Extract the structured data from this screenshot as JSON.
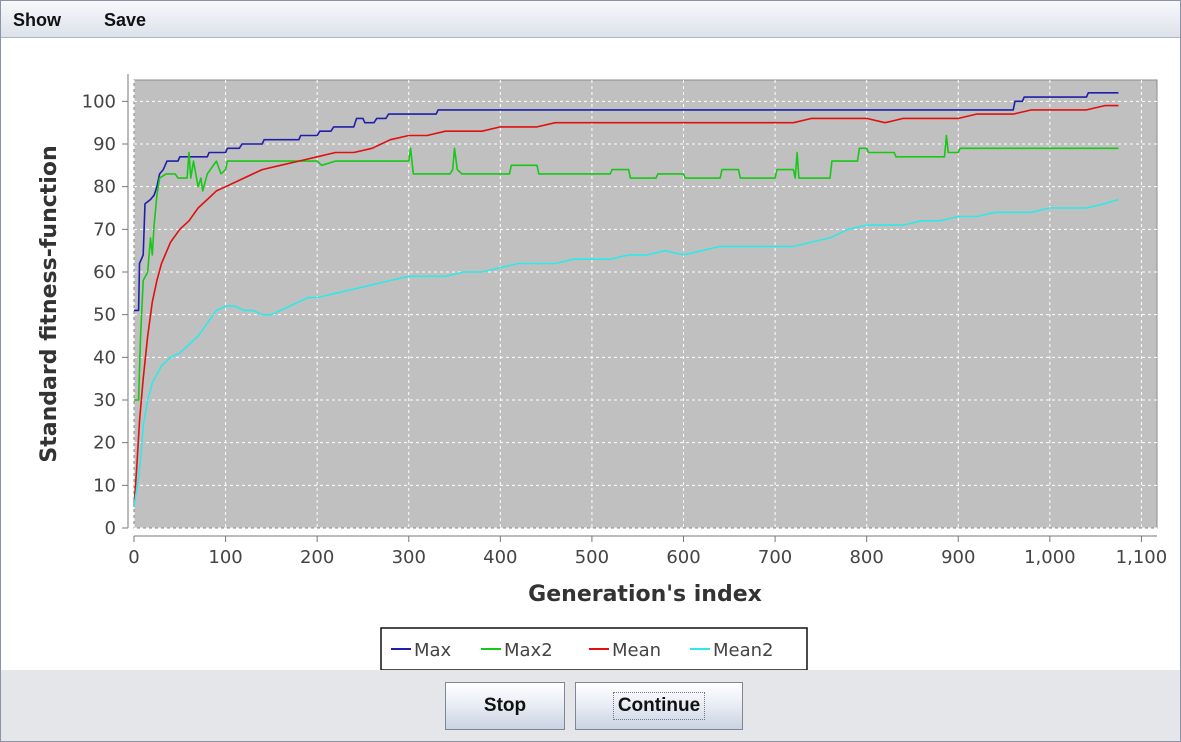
{
  "menu": {
    "items": [
      "Show",
      "Save"
    ]
  },
  "buttons": {
    "stop_label": "Stop",
    "continue_label": "Continue"
  },
  "chart_data": {
    "type": "line",
    "title": "",
    "xlabel": "Generation's index",
    "ylabel": "Standard fitness-function",
    "xlim": [
      0,
      1100
    ],
    "ylim": [
      0,
      105
    ],
    "x_ticks": [
      0,
      100,
      200,
      300,
      400,
      500,
      600,
      700,
      800,
      900,
      1000,
      1100
    ],
    "x_tick_labels": [
      "0",
      "100",
      "200",
      "300",
      "400",
      "500",
      "600",
      "700",
      "800",
      "900",
      "1,000",
      "1,100"
    ],
    "y_ticks": [
      0,
      10,
      20,
      30,
      40,
      50,
      60,
      70,
      80,
      90,
      100
    ],
    "y_tick_labels": [
      "0",
      "10",
      "20",
      "30",
      "40",
      "50",
      "60",
      "70",
      "80",
      "90",
      "100"
    ],
    "grid": true,
    "legend_position": "bottom-center",
    "plot_background": "#c0c0c0",
    "series": [
      {
        "name": "Max",
        "color": "#1f1faa",
        "step": true,
        "points": [
          [
            0,
            51
          ],
          [
            5,
            51
          ],
          [
            6,
            62
          ],
          [
            10,
            64
          ],
          [
            12,
            76
          ],
          [
            18,
            77
          ],
          [
            22,
            78
          ],
          [
            25,
            80
          ],
          [
            28,
            83
          ],
          [
            32,
            84
          ],
          [
            36,
            86
          ],
          [
            48,
            86
          ],
          [
            50,
            87
          ],
          [
            80,
            87
          ],
          [
            82,
            88
          ],
          [
            100,
            88
          ],
          [
            102,
            89
          ],
          [
            115,
            89
          ],
          [
            118,
            90
          ],
          [
            140,
            90
          ],
          [
            142,
            91
          ],
          [
            180,
            91
          ],
          [
            182,
            92
          ],
          [
            200,
            92
          ],
          [
            203,
            93
          ],
          [
            215,
            93
          ],
          [
            218,
            94
          ],
          [
            240,
            94
          ],
          [
            243,
            96
          ],
          [
            250,
            96
          ],
          [
            252,
            95
          ],
          [
            262,
            95
          ],
          [
            265,
            96
          ],
          [
            275,
            96
          ],
          [
            278,
            97
          ],
          [
            330,
            97
          ],
          [
            332,
            98
          ],
          [
            960,
            98
          ],
          [
            962,
            100
          ],
          [
            970,
            100
          ],
          [
            972,
            101
          ],
          [
            1040,
            101
          ],
          [
            1042,
            102
          ],
          [
            1075,
            102
          ]
        ]
      },
      {
        "name": "Max2",
        "color": "#18c818",
        "step": true,
        "points": [
          [
            0,
            30
          ],
          [
            5,
            30
          ],
          [
            7,
            44
          ],
          [
            10,
            58
          ],
          [
            15,
            60
          ],
          [
            18,
            68
          ],
          [
            20,
            64
          ],
          [
            22,
            71
          ],
          [
            25,
            78
          ],
          [
            28,
            82
          ],
          [
            35,
            83
          ],
          [
            45,
            83
          ],
          [
            48,
            82
          ],
          [
            58,
            82
          ],
          [
            60,
            88
          ],
          [
            62,
            82
          ],
          [
            65,
            86
          ],
          [
            70,
            80
          ],
          [
            73,
            82
          ],
          [
            75,
            79
          ],
          [
            80,
            83
          ],
          [
            90,
            86
          ],
          [
            95,
            83
          ],
          [
            100,
            84
          ],
          [
            102,
            86
          ],
          [
            200,
            86
          ],
          [
            205,
            85
          ],
          [
            220,
            86
          ],
          [
            300,
            86
          ],
          [
            302,
            89
          ],
          [
            305,
            83
          ],
          [
            345,
            83
          ],
          [
            348,
            84
          ],
          [
            350,
            89
          ],
          [
            353,
            84
          ],
          [
            358,
            83
          ],
          [
            410,
            83
          ],
          [
            412,
            85
          ],
          [
            440,
            85
          ],
          [
            442,
            83
          ],
          [
            520,
            83
          ],
          [
            522,
            84
          ],
          [
            540,
            84
          ],
          [
            542,
            82
          ],
          [
            570,
            82
          ],
          [
            572,
            83
          ],
          [
            600,
            83
          ],
          [
            602,
            82
          ],
          [
            640,
            82
          ],
          [
            642,
            84
          ],
          [
            660,
            84
          ],
          [
            662,
            82
          ],
          [
            700,
            82
          ],
          [
            702,
            84
          ],
          [
            720,
            84
          ],
          [
            722,
            82
          ],
          [
            724,
            88
          ],
          [
            726,
            82
          ],
          [
            760,
            82
          ],
          [
            762,
            86
          ],
          [
            790,
            86
          ],
          [
            792,
            89
          ],
          [
            800,
            89
          ],
          [
            802,
            88
          ],
          [
            830,
            88
          ],
          [
            832,
            87
          ],
          [
            885,
            87
          ],
          [
            887,
            92
          ],
          [
            889,
            88
          ],
          [
            900,
            88
          ],
          [
            902,
            89
          ],
          [
            1075,
            89
          ]
        ]
      },
      {
        "name": "Mean",
        "color": "#e01010",
        "step": false,
        "points": [
          [
            0,
            5
          ],
          [
            3,
            14
          ],
          [
            6,
            25
          ],
          [
            10,
            35
          ],
          [
            15,
            45
          ],
          [
            20,
            53
          ],
          [
            25,
            58
          ],
          [
            30,
            62
          ],
          [
            40,
            67
          ],
          [
            50,
            70
          ],
          [
            60,
            72
          ],
          [
            70,
            75
          ],
          [
            80,
            77
          ],
          [
            90,
            79
          ],
          [
            100,
            80
          ],
          [
            120,
            82
          ],
          [
            140,
            84
          ],
          [
            160,
            85
          ],
          [
            180,
            86
          ],
          [
            200,
            87
          ],
          [
            220,
            88
          ],
          [
            240,
            88
          ],
          [
            260,
            89
          ],
          [
            280,
            91
          ],
          [
            300,
            92
          ],
          [
            320,
            92
          ],
          [
            340,
            93
          ],
          [
            360,
            93
          ],
          [
            380,
            93
          ],
          [
            400,
            94
          ],
          [
            420,
            94
          ],
          [
            440,
            94
          ],
          [
            460,
            95
          ],
          [
            480,
            95
          ],
          [
            500,
            95
          ],
          [
            520,
            95
          ],
          [
            540,
            95
          ],
          [
            560,
            95
          ],
          [
            580,
            95
          ],
          [
            600,
            95
          ],
          [
            620,
            95
          ],
          [
            640,
            95
          ],
          [
            660,
            95
          ],
          [
            680,
            95
          ],
          [
            700,
            95
          ],
          [
            720,
            95
          ],
          [
            740,
            96
          ],
          [
            760,
            96
          ],
          [
            780,
            96
          ],
          [
            800,
            96
          ],
          [
            820,
            95
          ],
          [
            840,
            96
          ],
          [
            860,
            96
          ],
          [
            880,
            96
          ],
          [
            900,
            96
          ],
          [
            920,
            97
          ],
          [
            940,
            97
          ],
          [
            960,
            97
          ],
          [
            980,
            98
          ],
          [
            1000,
            98
          ],
          [
            1020,
            98
          ],
          [
            1040,
            98
          ],
          [
            1060,
            99
          ],
          [
            1075,
            99
          ]
        ]
      },
      {
        "name": "Mean2",
        "color": "#30e8e8",
        "step": false,
        "points": [
          [
            0,
            5
          ],
          [
            5,
            12
          ],
          [
            8,
            18
          ],
          [
            10,
            24
          ],
          [
            15,
            30
          ],
          [
            20,
            34
          ],
          [
            30,
            38
          ],
          [
            40,
            40
          ],
          [
            50,
            41
          ],
          [
            60,
            43
          ],
          [
            70,
            45
          ],
          [
            80,
            48
          ],
          [
            90,
            51
          ],
          [
            100,
            52
          ],
          [
            110,
            52
          ],
          [
            120,
            51
          ],
          [
            130,
            51
          ],
          [
            140,
            50
          ],
          [
            150,
            50
          ],
          [
            160,
            51
          ],
          [
            170,
            52
          ],
          [
            180,
            53
          ],
          [
            190,
            54
          ],
          [
            200,
            54
          ],
          [
            220,
            55
          ],
          [
            240,
            56
          ],
          [
            260,
            57
          ],
          [
            280,
            58
          ],
          [
            300,
            59
          ],
          [
            320,
            59
          ],
          [
            340,
            59
          ],
          [
            360,
            60
          ],
          [
            380,
            60
          ],
          [
            400,
            61
          ],
          [
            420,
            62
          ],
          [
            440,
            62
          ],
          [
            460,
            62
          ],
          [
            480,
            63
          ],
          [
            500,
            63
          ],
          [
            520,
            63
          ],
          [
            540,
            64
          ],
          [
            560,
            64
          ],
          [
            580,
            65
          ],
          [
            600,
            64
          ],
          [
            620,
            65
          ],
          [
            640,
            66
          ],
          [
            660,
            66
          ],
          [
            680,
            66
          ],
          [
            700,
            66
          ],
          [
            720,
            66
          ],
          [
            740,
            67
          ],
          [
            760,
            68
          ],
          [
            780,
            70
          ],
          [
            800,
            71
          ],
          [
            820,
            71
          ],
          [
            840,
            71
          ],
          [
            860,
            72
          ],
          [
            880,
            72
          ],
          [
            900,
            73
          ],
          [
            920,
            73
          ],
          [
            940,
            74
          ],
          [
            960,
            74
          ],
          [
            980,
            74
          ],
          [
            1000,
            75
          ],
          [
            1020,
            75
          ],
          [
            1040,
            75
          ],
          [
            1060,
            76
          ],
          [
            1075,
            77
          ]
        ]
      }
    ]
  }
}
